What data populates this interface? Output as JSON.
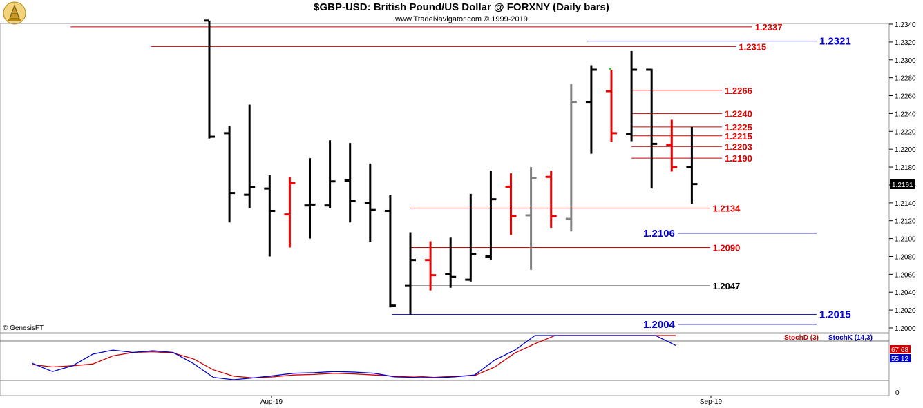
{
  "header": {
    "title": "$GBP-USD:  British Pound/US Dollar @ FORXNY  (Daily bars)",
    "subtitle": "www.TradeNavigator.com © 1999-2019"
  },
  "copyright": "© GenesisFT",
  "colors": {
    "up_bar": "#000000",
    "down_bar": "#ee0000",
    "neutral_bar": "#808080",
    "resistance_line": "#cc0000",
    "support_line": "#0000aa",
    "stoch_d": "#cc0000",
    "stoch_k": "#0000cc"
  },
  "chart_data": {
    "type": "ohlc",
    "ylim": [
      1.2,
      1.234
    ],
    "y_ticks": [
      "1.2340",
      "1.2320",
      "1.2300",
      "1.2280",
      "1.2260",
      "1.2240",
      "1.2220",
      "1.2200",
      "1.2180",
      "1.2160",
      "1.2140",
      "1.2120",
      "1.2100",
      "1.2080",
      "1.2060",
      "1.2040",
      "1.2020",
      "1.2000"
    ],
    "x_labels": [
      {
        "label": "Aug-19",
        "index": 3
      },
      {
        "label": "Sep-19",
        "index": 24
      }
    ],
    "current_price": "1.2161",
    "bars": [
      {
        "open": 1.2344,
        "high": 1.2344,
        "low": 1.2212,
        "close": 1.2214,
        "color": "up"
      },
      {
        "open": 1.2218,
        "high": 1.2226,
        "low": 1.2118,
        "close": 1.2151,
        "color": "up"
      },
      {
        "open": 1.2149,
        "high": 1.225,
        "low": 1.2134,
        "close": 1.2158,
        "color": "up"
      },
      {
        "open": 1.2156,
        "high": 1.2171,
        "low": 1.208,
        "close": 1.2131,
        "color": "up"
      },
      {
        "open": 1.2127,
        "high": 1.2169,
        "low": 1.209,
        "close": 1.2162,
        "color": "down"
      },
      {
        "open": 1.2137,
        "high": 1.219,
        "low": 1.21,
        "close": 1.2138,
        "color": "up"
      },
      {
        "open": 1.2137,
        "high": 1.221,
        "low": 1.2134,
        "close": 1.2164,
        "color": "up"
      },
      {
        "open": 1.2165,
        "high": 1.2207,
        "low": 1.2118,
        "close": 1.2142,
        "color": "up"
      },
      {
        "open": 1.214,
        "high": 1.2184,
        "low": 1.2096,
        "close": 1.2132,
        "color": "up"
      },
      {
        "open": 1.2131,
        "high": 1.2149,
        "low": 1.2023,
        "close": 1.2025,
        "color": "up"
      },
      {
        "open": 1.2047,
        "high": 1.2107,
        "low": 1.2015,
        "close": 1.2076,
        "color": "up"
      },
      {
        "open": 1.2076,
        "high": 1.2097,
        "low": 1.2042,
        "close": 1.2059,
        "color": "down"
      },
      {
        "open": 1.206,
        "high": 1.2101,
        "low": 1.2045,
        "close": 1.2057,
        "color": "up"
      },
      {
        "open": 1.2054,
        "high": 1.215,
        "low": 1.2052,
        "close": 1.2083,
        "color": "up"
      },
      {
        "open": 1.208,
        "high": 1.2176,
        "low": 1.2076,
        "close": 1.2144,
        "color": "up"
      },
      {
        "open": 1.2158,
        "high": 1.2173,
        "low": 1.2104,
        "close": 1.2125,
        "color": "down"
      },
      {
        "open": 1.2126,
        "high": 1.218,
        "low": 1.2065,
        "close": 1.2168,
        "color": "neutral"
      },
      {
        "open": 1.2169,
        "high": 1.2176,
        "low": 1.2112,
        "close": 1.2125,
        "color": "down"
      },
      {
        "open": 1.2122,
        "high": 1.2273,
        "low": 1.2108,
        "close": 1.2253,
        "color": "neutral"
      },
      {
        "open": 1.2253,
        "high": 1.2294,
        "low": 1.2195,
        "close": 1.2289,
        "color": "up"
      },
      {
        "open": 1.2265,
        "high": 1.2289,
        "low": 1.2208,
        "close": 1.2218,
        "color": "down"
      },
      {
        "open": 1.2217,
        "high": 1.231,
        "low": 1.2209,
        "close": 1.2289,
        "color": "up"
      },
      {
        "open": 1.2289,
        "high": 1.229,
        "low": 1.2156,
        "close": 1.2206,
        "color": "up"
      },
      {
        "open": 1.2205,
        "high": 1.2233,
        "low": 1.2175,
        "close": 1.218,
        "color": "down"
      },
      {
        "open": 1.218,
        "high": 1.2225,
        "low": 1.2139,
        "close": 1.2161,
        "color": "up"
      }
    ],
    "levels": [
      {
        "label": "1.2337",
        "value": 1.2337,
        "color": "red",
        "start": -6.9,
        "end": 27.0
      },
      {
        "label": "1.2315",
        "value": 1.2315,
        "color": "red",
        "start": -2.9,
        "end": 26.2
      },
      {
        "label": "1.2321",
        "value": 1.2321,
        "color": "blue",
        "start": 18.8,
        "end": 30.2
      },
      {
        "label": "1.2266",
        "value": 1.2266,
        "color": "red",
        "start": 21.0,
        "end": 25.5
      },
      {
        "label": "1.2240",
        "value": 1.224,
        "color": "red",
        "start": 21.0,
        "end": 25.5
      },
      {
        "label": "1.2225",
        "value": 1.2225,
        "color": "red",
        "start": 21.0,
        "end": 25.5
      },
      {
        "label": "1.2215",
        "value": 1.2215,
        "color": "red",
        "start": 21.0,
        "end": 25.5
      },
      {
        "label": "1.2203",
        "value": 1.2203,
        "color": "red",
        "start": 21.0,
        "end": 25.5
      },
      {
        "label": "1.2190",
        "value": 1.219,
        "color": "red",
        "start": 21.0,
        "end": 25.5
      },
      {
        "label": "1.2134",
        "value": 1.2134,
        "color": "red",
        "start": 10.0,
        "end": 24.9
      },
      {
        "label": "1.2106",
        "value": 1.2106,
        "color": "blue",
        "start": 23.3,
        "end": 30.2
      },
      {
        "label": "1.2090",
        "value": 1.209,
        "color": "red",
        "start": 10.0,
        "end": 24.9
      },
      {
        "label": "1.2047",
        "value": 1.2047,
        "color": "black",
        "start": 9.8,
        "end": 24.9
      },
      {
        "label": "1.2015",
        "value": 1.2015,
        "color": "blue",
        "start": 9.1,
        "end": 30.2
      },
      {
        "label": "1.2004",
        "value": 1.2004,
        "color": "blue",
        "start": 23.3,
        "end": 30.2
      }
    ],
    "stochastic": {
      "legend_d": "StochD (3)",
      "legend_k": "StochK (14,3)",
      "value_d": "67.68",
      "value_k": "55.12",
      "y_tick": "0",
      "ylim": [
        0,
        100
      ],
      "x": [
        -8.8,
        -7.8,
        -6.8,
        -5.8,
        -4.8,
        -3.8,
        -2.8,
        -1.8,
        -0.8,
        0.2,
        1.2,
        2.2,
        3.2,
        4.2,
        5.2,
        6.2,
        7.2,
        8.2,
        9.2,
        10.2,
        11.2,
        12.2,
        13.2,
        14.2,
        15.2,
        16.2,
        17.2,
        18.2,
        19.2,
        20.2,
        21.2,
        22.2,
        23.2
      ],
      "stoch_d": [
        32,
        28,
        30,
        33,
        47,
        53,
        54,
        52,
        42,
        23,
        12,
        9,
        11,
        14,
        15,
        17,
        16,
        14,
        12,
        12,
        10,
        12,
        13,
        28,
        52,
        68,
        84,
        92,
        98,
        104,
        106,
        98,
        84
      ],
      "stoch_k": [
        34,
        20,
        30,
        50,
        57,
        53,
        56,
        53,
        34,
        10,
        6,
        9,
        13,
        17,
        18,
        20,
        19,
        17,
        11,
        10,
        9,
        11,
        14,
        40,
        57,
        88,
        93,
        105,
        107,
        108,
        97,
        88,
        65
      ]
    }
  }
}
